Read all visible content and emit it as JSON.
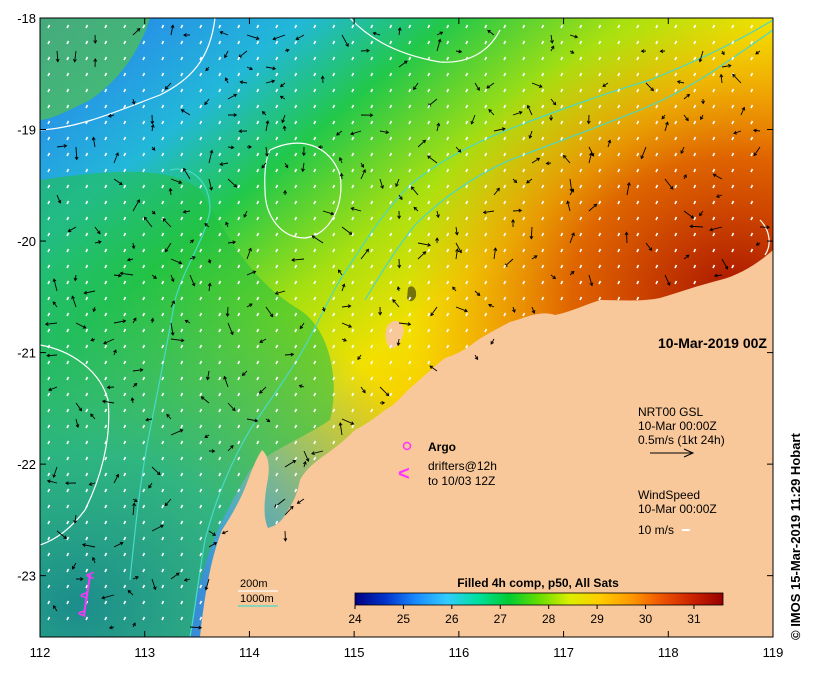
{
  "map": {
    "date_label": "10-Mar-2019 00Z",
    "lon_ticks": [
      "112",
      "113",
      "114",
      "115",
      "116",
      "117",
      "118",
      "119"
    ],
    "lat_ticks": [
      "-18",
      "-19",
      "-20",
      "-21",
      "-22",
      "-23"
    ],
    "lon_range": [
      112,
      119
    ],
    "lat_range": [
      -23.55,
      -18
    ],
    "land_color": "#f9c89a",
    "contour_200m_color": "#ffffff",
    "contour_1000m_color": "#49d9c7"
  },
  "depth_legend": {
    "label_200m": "200m",
    "label_1000m": "1000m"
  },
  "current_legend": {
    "title": "NRT00 GSL",
    "time": "10-Mar 00:00Z",
    "scale": "0.5m/s (1kt 24h)"
  },
  "wind_legend": {
    "title": "WindSpeed",
    "time": "10-Mar 00:00Z",
    "scale": "10 m/s"
  },
  "markers": {
    "argo_label": "Argo",
    "argo_color": "#ff33ff",
    "drifters_label_line1": "drifters@12h",
    "drifters_label_line2": "to 10/03 12Z"
  },
  "colorbar": {
    "title": "Filled 4h comp, p50, All Sats",
    "ticks": [
      "24",
      "25",
      "26",
      "27",
      "28",
      "29",
      "30",
      "31"
    ],
    "range": [
      24,
      31.6
    ],
    "colors": [
      "#000080",
      "#0033cc",
      "#1a8cff",
      "#33ccff",
      "#00e0a0",
      "#00cc33",
      "#66dd00",
      "#ddee00",
      "#ffcc00",
      "#ff9900",
      "#ee5500",
      "#cc2200",
      "#990000"
    ]
  },
  "credit": "© IMOS 15-Mar-2019 11:29 Hobart"
}
